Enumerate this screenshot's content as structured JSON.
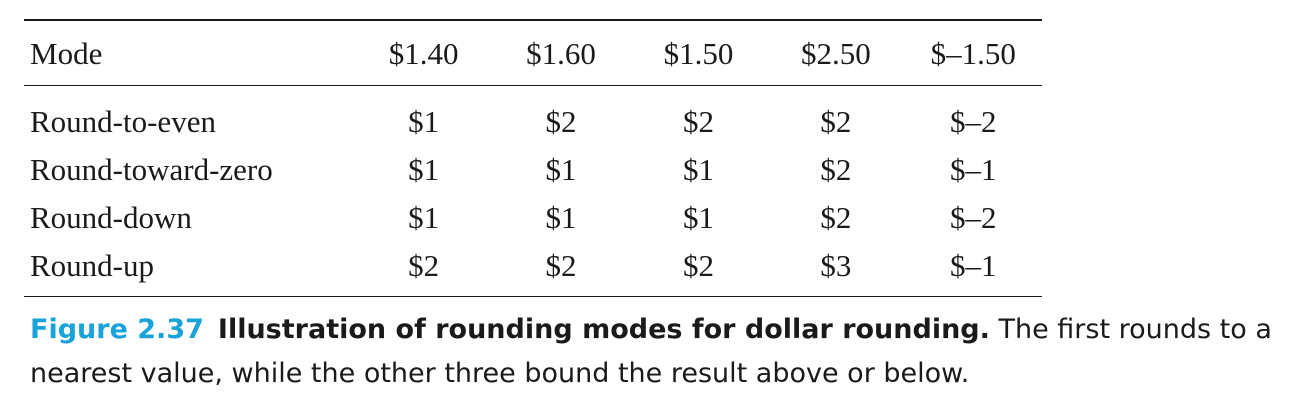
{
  "table": {
    "header": {
      "mode_label": "Mode",
      "values": [
        "$1.40",
        "$1.60",
        "$1.50",
        "$2.50",
        "$–1.50"
      ]
    },
    "rows": [
      {
        "mode": "Round-to-even",
        "cells": [
          "$1",
          "$2",
          "$2",
          "$2",
          "$–2"
        ]
      },
      {
        "mode": "Round-toward-zero",
        "cells": [
          "$1",
          "$1",
          "$1",
          "$2",
          "$–1"
        ]
      },
      {
        "mode": "Round-down",
        "cells": [
          "$1",
          "$1",
          "$1",
          "$2",
          "$–2"
        ]
      },
      {
        "mode": "Round-up",
        "cells": [
          "$2",
          "$2",
          "$2",
          "$3",
          "$–1"
        ]
      }
    ]
  },
  "caption": {
    "label": "Figure 2.37",
    "title": "Illustration of rounding modes for dollar rounding.",
    "text": " The first rounds to a nearest value, while the other three bound the result above or below."
  },
  "colors": {
    "figure_label": "#1aa3d9",
    "text": "#1a1a1a"
  }
}
